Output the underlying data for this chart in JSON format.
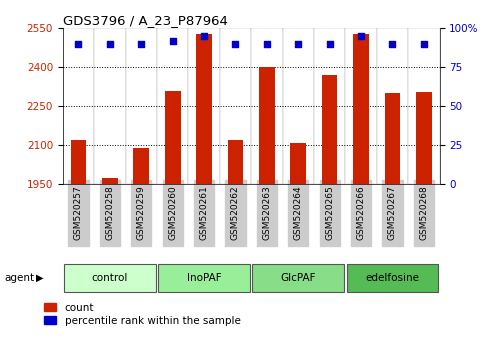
{
  "title": "GDS3796 / A_23_P87964",
  "samples": [
    "GSM520257",
    "GSM520258",
    "GSM520259",
    "GSM520260",
    "GSM520261",
    "GSM520262",
    "GSM520263",
    "GSM520264",
    "GSM520265",
    "GSM520266",
    "GSM520267",
    "GSM520268"
  ],
  "bar_values": [
    2120,
    1975,
    2090,
    2310,
    2530,
    2120,
    2400,
    2110,
    2370,
    2530,
    2300,
    2305
  ],
  "percentile_values": [
    90,
    90,
    90,
    92,
    95,
    90,
    90,
    90,
    90,
    95,
    90,
    90
  ],
  "groups": [
    {
      "label": "control",
      "start": 0,
      "end": 3,
      "color": "#ccffcc"
    },
    {
      "label": "InoPAF",
      "start": 3,
      "end": 6,
      "color": "#99ee99"
    },
    {
      "label": "GlcPAF",
      "start": 6,
      "end": 9,
      "color": "#88dd88"
    },
    {
      "label": "edelfosine",
      "start": 9,
      "end": 12,
      "color": "#55bb55"
    }
  ],
  "ymin": 1950,
  "ymax": 2550,
  "yticks": [
    1950,
    2100,
    2250,
    2400,
    2550
  ],
  "right_yticks": [
    0,
    25,
    50,
    75,
    100
  ],
  "bar_color": "#cc2200",
  "dot_color": "#0000cc",
  "bar_width": 0.5,
  "plot_bg_color": "#ffffff",
  "sample_bg_color": "#cccccc",
  "ylabel_color": "#cc2200",
  "right_ylabel_color": "#0000cc",
  "agent_label": "agent",
  "grid_color": "#000000",
  "grid_linestyle": "dotted",
  "grid_linewidth": 0.7,
  "gridlines": [
    2400,
    2250,
    2100
  ]
}
